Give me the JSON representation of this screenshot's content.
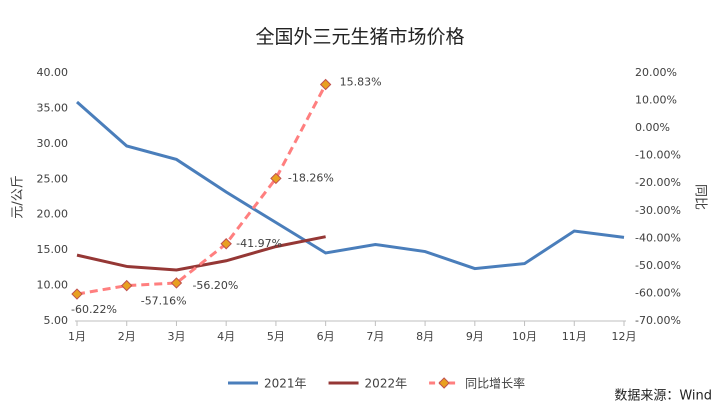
{
  "chart_data": {
    "type": "line",
    "title": "全国外三元生猪市场价格",
    "ylabel": "元/公斤",
    "y2label": "同比",
    "categories": [
      "1月",
      "2月",
      "3月",
      "4月",
      "5月",
      "6月",
      "7月",
      "8月",
      "9月",
      "10月",
      "11月",
      "12月"
    ],
    "series": [
      {
        "name": "2021年",
        "color": "#4a7ebb",
        "values": [
          35.9,
          29.7,
          27.8,
          23.2,
          18.9,
          14.6,
          15.8,
          14.8,
          12.4,
          13.1,
          17.7,
          16.8
        ]
      },
      {
        "name": "2022年",
        "color": "#953735",
        "values": [
          14.3,
          12.7,
          12.2,
          13.5,
          15.5,
          16.9,
          null,
          null,
          null,
          null,
          null,
          null
        ]
      },
      {
        "name": "同比增长率",
        "color": "#ff7f7f",
        "marker_color": "#e8a020",
        "dashed": true,
        "axis": "y2",
        "values": [
          -60.22,
          -57.16,
          -56.2,
          -41.97,
          -18.26,
          15.83,
          null,
          null,
          null,
          null,
          null,
          null
        ],
        "value_labels": [
          "-60.22%",
          "-57.16%",
          "-56.20%",
          "-41.97%",
          "-18.26%",
          "15.83%",
          null,
          null,
          null,
          null,
          null,
          null
        ]
      }
    ],
    "ylim": [
      5,
      40
    ],
    "yticks": [
      {
        "value": 5,
        "label": "5.00"
      },
      {
        "value": 10,
        "label": "10.00"
      },
      {
        "value": 15,
        "label": "15.00"
      },
      {
        "value": 20,
        "label": "20.00"
      },
      {
        "value": 25,
        "label": "25.00"
      },
      {
        "value": 30,
        "label": "30.00"
      },
      {
        "value": 35,
        "label": "35.00"
      },
      {
        "value": 40,
        "label": "40.00"
      }
    ],
    "y2lim": [
      -70,
      20
    ],
    "y2ticks": [
      {
        "value": -70,
        "label": "-70.00%"
      },
      {
        "value": -60,
        "label": "-60.00%"
      },
      {
        "value": -50,
        "label": "-50.00%"
      },
      {
        "value": -40,
        "label": "-40.00%"
      },
      {
        "value": -30,
        "label": "-30.00%"
      },
      {
        "value": -20,
        "label": "-20.00%"
      },
      {
        "value": -10,
        "label": "-10.00%"
      },
      {
        "value": 0,
        "label": "0.00%"
      },
      {
        "value": 10,
        "label": "10.00%"
      },
      {
        "value": 20,
        "label": "20.00%"
      }
    ],
    "grid": false,
    "legend": "bottom",
    "source": "数据来源：Wind"
  }
}
